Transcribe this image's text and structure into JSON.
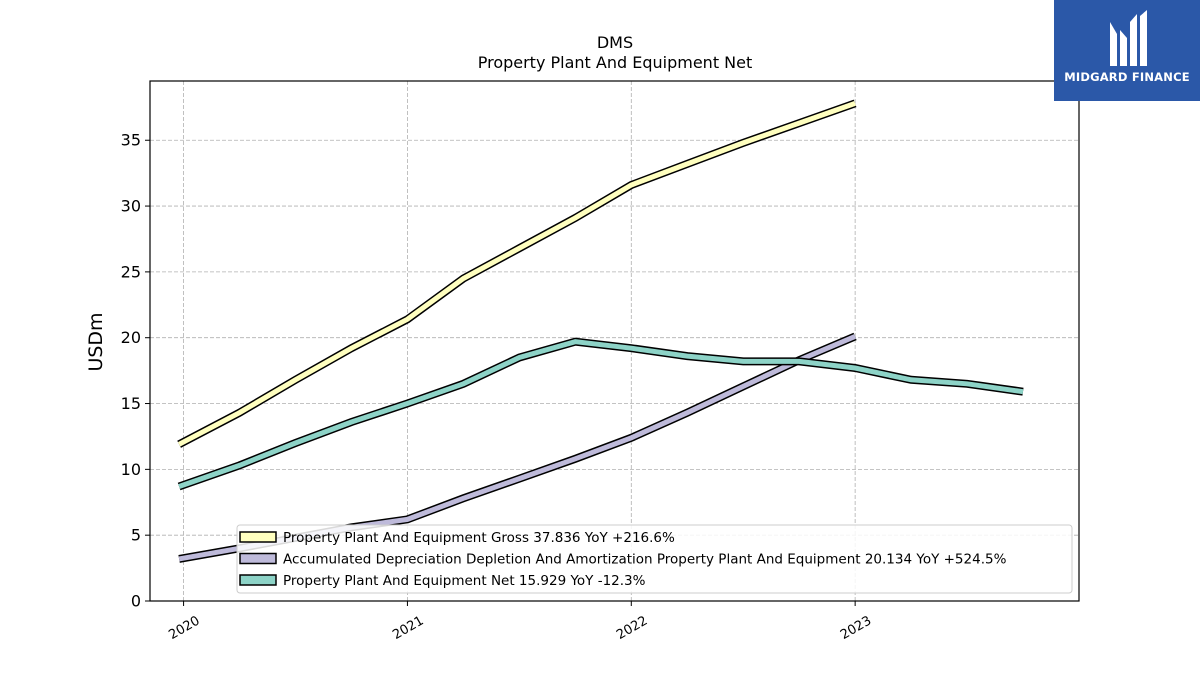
{
  "chart_data": {
    "type": "line",
    "title": "DMS",
    "subtitle": "Property Plant And Equipment Net",
    "ylabel": "USDm",
    "xlabel": "",
    "xlim": [
      2019.85,
      2024.0
    ],
    "ylim": [
      0,
      39.5
    ],
    "yticks": [
      0,
      5,
      10,
      15,
      20,
      25,
      30,
      35
    ],
    "xticks": [
      2020,
      2021,
      2022,
      2023
    ],
    "grid": true,
    "legend_position": "bottom",
    "series": [
      {
        "name": "Property Plant And Equipment Gross",
        "legend_label": "Property Plant And Equipment Gross  37.836 YoY +216.6%",
        "color": "#ffffbf",
        "x": [
          2019.98,
          2020.25,
          2020.5,
          2020.75,
          2021.0,
          2021.25,
          2021.5,
          2021.75,
          2022.0,
          2022.25,
          2022.5,
          2022.75,
          2023.0
        ],
        "values": [
          11.9,
          14.3,
          16.8,
          19.2,
          21.4,
          24.5,
          26.8,
          29.1,
          31.6,
          33.2,
          34.8,
          36.3,
          37.8
        ]
      },
      {
        "name": "Accumulated Depreciation Depletion And Amortization Property Plant And Equipment",
        "legend_label": "Accumulated Depreciation Depletion And Amortization Property Plant And Equipment  20.134 YoY +524.5%",
        "color": "#bebada",
        "x": [
          2019.98,
          2020.25,
          2020.5,
          2020.75,
          2021.0,
          2021.25,
          2021.5,
          2021.75,
          2022.0,
          2022.25,
          2022.5,
          2022.75,
          2023.0
        ],
        "values": [
          3.2,
          4.0,
          4.8,
          5.6,
          6.2,
          7.8,
          9.3,
          10.8,
          12.4,
          14.3,
          16.3,
          18.3,
          20.1
        ]
      },
      {
        "name": "Property Plant And Equipment Net",
        "legend_label": "Property Plant And Equipment Net  15.929 YoY -12.3%",
        "color": "#8dd3c7",
        "x": [
          2019.98,
          2020.25,
          2020.5,
          2020.75,
          2021.0,
          2021.25,
          2021.5,
          2021.75,
          2022.0,
          2022.25,
          2022.5,
          2022.75,
          2023.0,
          2023.25,
          2023.5,
          2023.75
        ],
        "values": [
          8.7,
          10.3,
          12.0,
          13.6,
          15.0,
          16.5,
          18.5,
          19.7,
          19.2,
          18.6,
          18.2,
          18.2,
          17.7,
          16.8,
          16.5,
          15.9
        ]
      }
    ]
  },
  "logo": {
    "text": "MIDGARD FINANCE",
    "color": "#2b58a8"
  }
}
